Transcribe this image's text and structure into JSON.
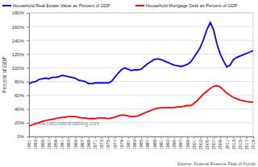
{
  "chart_data": {
    "type": "line",
    "y_label": "Percent of GDP",
    "annotations": [
      "www.calculatedriskblog.com",
      "Source: Federal Reserve Flow of Funds"
    ],
    "x": [
      1951,
      1952,
      1953,
      1954,
      1955,
      1956,
      1957,
      1958,
      1959,
      1960,
      1961,
      1962,
      1963,
      1964,
      1965,
      1966,
      1967,
      1968,
      1969,
      1970,
      1971,
      1972,
      1973,
      1974,
      1975,
      1976,
      1977,
      1978,
      1979,
      1980,
      1981,
      1982,
      1983,
      1984,
      1985,
      1986,
      1987,
      1988,
      1989,
      1990,
      1991,
      1992,
      1993,
      1994,
      1995,
      1996,
      1997,
      1998,
      1999,
      2000,
      2001,
      2002,
      2003,
      2004,
      2005,
      2006,
      2007,
      2008,
      2009,
      2010,
      2011,
      2012,
      2013,
      2014,
      2015,
      2016,
      2017,
      2018,
      2019
    ],
    "series": [
      {
        "name": "Household Real Estate Value as Percent of GDP",
        "color": "#0000ff",
        "values": [
          77,
          79,
          80,
          83,
          84,
          85,
          84,
          86,
          86,
          87,
          89,
          88,
          87,
          86,
          85,
          82,
          81,
          80,
          77,
          77,
          78,
          78,
          78,
          78,
          78,
          80,
          86,
          92,
          97,
          100,
          98,
          96,
          97,
          97,
          98,
          102,
          106,
          109,
          112,
          113,
          112,
          110,
          108,
          106,
          104,
          103,
          102,
          103,
          105,
          108,
          115,
          122,
          130,
          142,
          156,
          166,
          155,
          135,
          120,
          110,
          101,
          104,
          112,
          115,
          117,
          119,
          121,
          123,
          125
        ]
      },
      {
        "name": "Household Mortgage Debt as Percent of GDP",
        "color": "#ff0000",
        "values": [
          15,
          17,
          19,
          20,
          22,
          23,
          24,
          25,
          26,
          27,
          28,
          28,
          29,
          29,
          29,
          28,
          27,
          27,
          26,
          26,
          26,
          27,
          27,
          27,
          26,
          27,
          28,
          30,
          31,
          31,
          30,
          29,
          29,
          30,
          32,
          34,
          36,
          38,
          40,
          41,
          42,
          42,
          42,
          42,
          42,
          43,
          43,
          44,
          45,
          45,
          48,
          52,
          57,
          62,
          66,
          70,
          73,
          74,
          72,
          68,
          63,
          60,
          57,
          55,
          53,
          52,
          51,
          50,
          50
        ]
      }
    ],
    "xlim": [
      1951,
      2019
    ],
    "xticks": [
      1951,
      1953,
      1955,
      1957,
      1959,
      1961,
      1963,
      1965,
      1967,
      1969,
      1971,
      1973,
      1975,
      1977,
      1979,
      1981,
      1983,
      1985,
      1987,
      1989,
      1991,
      1993,
      1995,
      1997,
      1999,
      2001,
      2003,
      2005,
      2007,
      2009,
      2011,
      2013,
      2015,
      2017,
      2019
    ],
    "ylim": [
      0,
      180
    ],
    "yticks": [
      {
        "value": 0,
        "label": "0%"
      },
      {
        "value": 20,
        "label": "20%"
      },
      {
        "value": 40,
        "label": "40%"
      },
      {
        "value": 60,
        "label": "60%"
      },
      {
        "value": 80,
        "label": "80%"
      },
      {
        "value": 100,
        "label": "100%"
      },
      {
        "value": 120,
        "label": "120%"
      },
      {
        "value": 140,
        "label": "140%"
      },
      {
        "value": 160,
        "label": "160%"
      },
      {
        "value": 180,
        "label": "180%"
      }
    ],
    "grid": true,
    "legend": "top"
  }
}
